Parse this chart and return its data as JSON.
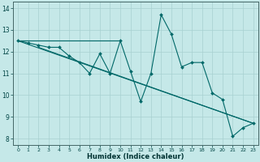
{
  "xlabel": "Humidex (Indice chaleur)",
  "background_color": "#c5e8e8",
  "grid_color": "#a8d0d0",
  "line_color": "#006868",
  "xlim": [
    -0.5,
    23.5
  ],
  "ylim": [
    7.7,
    14.3
  ],
  "yticks": [
    8,
    9,
    10,
    11,
    12,
    13,
    14
  ],
  "xticks": [
    0,
    1,
    2,
    3,
    4,
    5,
    6,
    7,
    8,
    9,
    10,
    11,
    12,
    13,
    14,
    15,
    16,
    17,
    18,
    19,
    20,
    21,
    22,
    23
  ],
  "series": [
    [
      0,
      12.5
    ],
    [
      1,
      12.4
    ],
    [
      2,
      12.3
    ],
    [
      3,
      12.2
    ],
    [
      4,
      12.2
    ],
    [
      5,
      11.8
    ],
    [
      6,
      11.5
    ],
    [
      7,
      11.0
    ],
    [
      8,
      11.9
    ],
    [
      9,
      11.0
    ],
    [
      10,
      12.5
    ],
    [
      11,
      11.1
    ],
    [
      12,
      9.7
    ],
    [
      13,
      11.0
    ],
    [
      14,
      13.7
    ],
    [
      15,
      12.8
    ],
    [
      16,
      11.3
    ],
    [
      17,
      11.5
    ],
    [
      18,
      11.5
    ],
    [
      19,
      10.1
    ],
    [
      20,
      9.8
    ],
    [
      21,
      8.1
    ],
    [
      22,
      8.5
    ],
    [
      23,
      8.7
    ]
  ],
  "line2": [
    [
      0,
      12.5
    ],
    [
      10,
      12.5
    ]
  ],
  "line3": [
    [
      0,
      12.5
    ],
    [
      23,
      8.7
    ]
  ],
  "line4": [
    [
      2,
      12.2
    ],
    [
      23,
      8.7
    ]
  ]
}
